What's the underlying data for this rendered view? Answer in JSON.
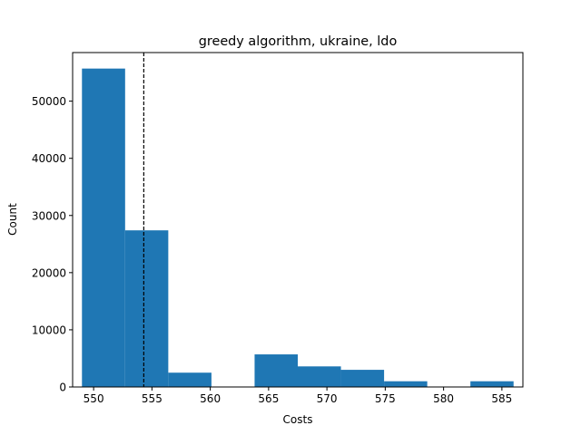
{
  "chart_data": {
    "type": "bar",
    "title": "greedy algorithm, ukraine, ldo",
    "xlabel": "Costs",
    "ylabel": "Count",
    "xlim": [
      548.2,
      586.8
    ],
    "ylim": [
      0,
      58500
    ],
    "xticks": [
      "550",
      "555",
      "560",
      "565",
      "570",
      "575",
      "580",
      "585"
    ],
    "yticks": [
      "0",
      "10000",
      "20000",
      "30000",
      "40000",
      "50000"
    ],
    "bins": [
      {
        "x0": 549.0,
        "x1": 552.7,
        "count": 55700
      },
      {
        "x0": 552.7,
        "x1": 556.4,
        "count": 27400
      },
      {
        "x0": 556.4,
        "x1": 560.1,
        "count": 2500
      },
      {
        "x0": 560.1,
        "x1": 563.8,
        "count": 0
      },
      {
        "x0": 563.8,
        "x1": 567.5,
        "count": 5700
      },
      {
        "x0": 567.5,
        "x1": 571.2,
        "count": 3600
      },
      {
        "x0": 571.2,
        "x1": 574.9,
        "count": 3000
      },
      {
        "x0": 574.9,
        "x1": 578.6,
        "count": 1000
      },
      {
        "x0": 578.6,
        "x1": 582.3,
        "count": 0
      },
      {
        "x0": 582.3,
        "x1": 586.0,
        "count": 1000
      }
    ],
    "vline": {
      "x": 554.3,
      "style": "dashed"
    },
    "bar_color": "#1f77b4",
    "grid": false,
    "legend": "none"
  }
}
